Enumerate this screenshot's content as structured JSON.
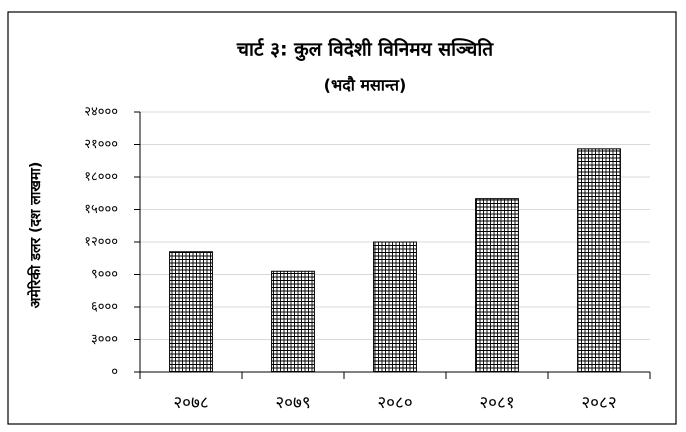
{
  "chart_data": {
    "type": "bar",
    "title": "चार्ट ३: कुल विदेशी विनिमय सञ्चिति",
    "subtitle": "(भदौ मसान्त)",
    "y_label": "अमेरिकी डलर (दश लाखमा)",
    "categories": [
      "२०७८",
      "२०७९",
      "२०८०",
      "२०८१",
      "२०८२"
    ],
    "values": [
      11100,
      9300,
      12000,
      16000,
      20600
    ],
    "color": "#000000",
    "ylim": [
      0,
      24000
    ],
    "yticks": [
      {
        "value": 0,
        "label": "०"
      },
      {
        "value": 3000,
        "label": "३०००"
      },
      {
        "value": 6000,
        "label": "६०००"
      },
      {
        "value": 9000,
        "label": "९०००"
      },
      {
        "value": 12000,
        "label": "१२०००"
      },
      {
        "value": 15000,
        "label": "१५०००"
      },
      {
        "value": 18000,
        "label": "१८०००"
      },
      {
        "value": 21000,
        "label": "२१०००"
      },
      {
        "value": 24000,
        "label": "२४०००"
      }
    ],
    "grid": true
  }
}
